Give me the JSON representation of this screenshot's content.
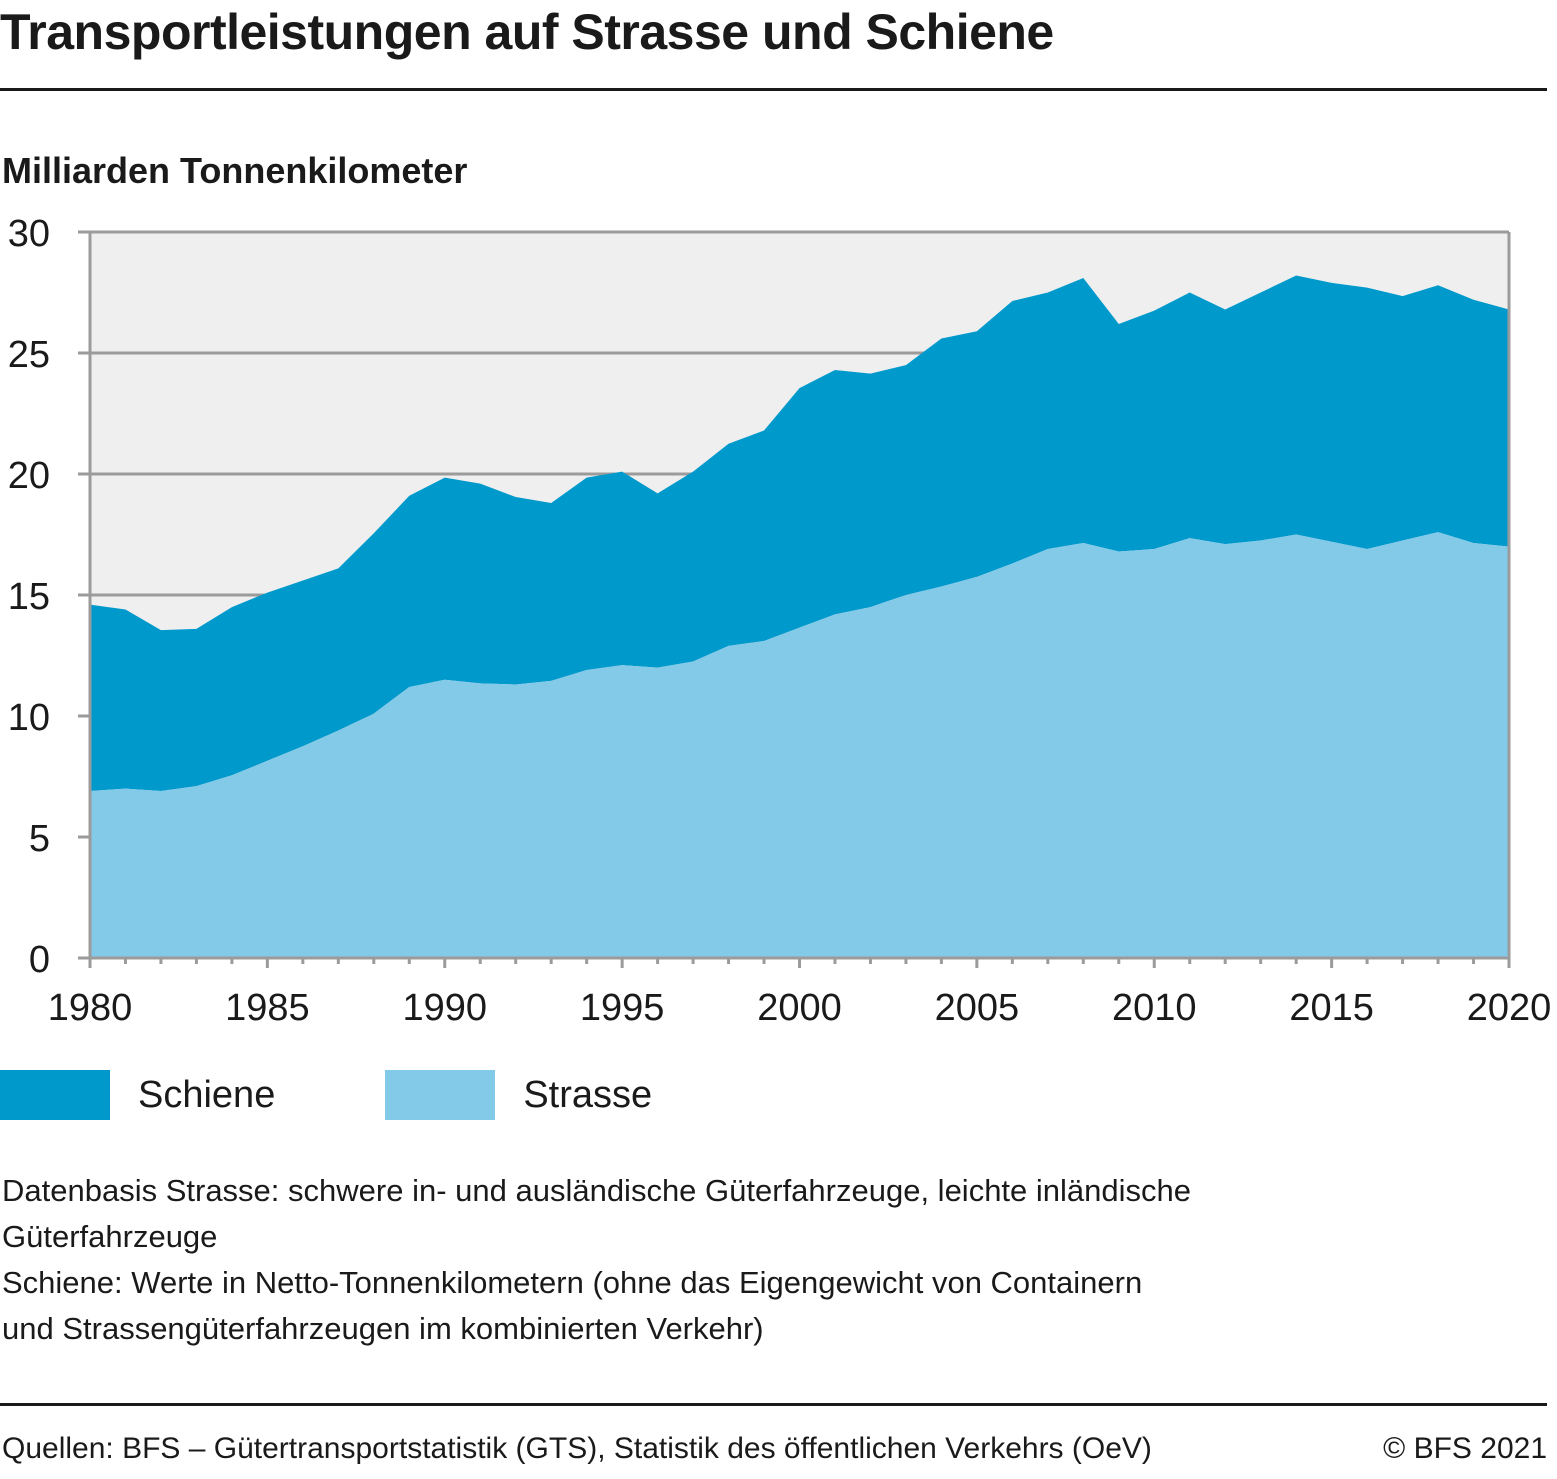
{
  "title": "Transportleistungen auf Strasse und Schiene",
  "unit_label": "Milliarden Tonnenkilometer",
  "colors": {
    "schiene": "#0099cc",
    "strasse": "#82cae8",
    "plot_background": "#efefef",
    "grid": "#9b9b9b",
    "text": "#1a1a1a"
  },
  "legend": [
    {
      "key": "schiene",
      "label": "Schiene"
    },
    {
      "key": "strasse",
      "label": "Strasse"
    }
  ],
  "notes": [
    "Datenbasis Strasse: schwere in- und ausländische Güterfahrzeuge, leichte inländische",
    "Güterfahrzeuge",
    "Schiene: Werte in Netto-Tonnenkilometern (ohne das Eigengewicht von Containern",
    "und Strassengüterfahrzeugen im kombinierten Verkehr)"
  ],
  "footer": {
    "sources": "Quellen: BFS – Gütertransportstatistik (GTS), Statistik des öffentlichen Verkehrs (OeV)",
    "copyright": "© BFS 2021"
  },
  "chart_data": {
    "type": "area",
    "stacked": true,
    "title": "Transportleistungen auf Strasse und Schiene",
    "ylabel": "Milliarden Tonnenkilometer",
    "xlabel": "",
    "xlim": [
      1980,
      2020
    ],
    "ylim": [
      0,
      30
    ],
    "yticks": [
      0,
      5,
      10,
      15,
      20,
      25,
      30
    ],
    "xticks_labeled": [
      1980,
      1985,
      1990,
      1995,
      2000,
      2005,
      2010,
      2015,
      2020
    ],
    "grid": true,
    "legend_position": "bottom-left",
    "x": [
      1980,
      1981,
      1982,
      1983,
      1984,
      1985,
      1986,
      1987,
      1988,
      1989,
      1990,
      1991,
      1992,
      1993,
      1994,
      1995,
      1996,
      1997,
      1998,
      1999,
      2000,
      2001,
      2002,
      2003,
      2004,
      2005,
      2006,
      2007,
      2008,
      2009,
      2010,
      2011,
      2012,
      2013,
      2014,
      2015,
      2016,
      2017,
      2018,
      2019,
      2020
    ],
    "series": [
      {
        "name": "Strasse",
        "values": [
          6.9,
          7.0,
          6.9,
          7.1,
          7.55,
          8.15,
          8.75,
          9.4,
          10.1,
          11.2,
          11.5,
          11.35,
          11.3,
          11.45,
          11.9,
          12.1,
          12.0,
          12.25,
          12.9,
          13.1,
          13.65,
          14.2,
          14.5,
          15.0,
          15.35,
          15.75,
          16.3,
          16.9,
          17.15,
          16.8,
          16.9,
          17.35,
          17.1,
          17.25,
          17.5,
          17.2,
          16.9,
          17.25,
          17.6,
          17.15,
          17.0
        ]
      },
      {
        "name": "Schiene",
        "values": [
          7.7,
          7.4,
          6.65,
          6.5,
          6.95,
          6.95,
          6.85,
          6.7,
          7.45,
          7.9,
          8.35,
          8.25,
          7.75,
          7.35,
          7.95,
          8.0,
          7.2,
          7.85,
          8.35,
          8.7,
          9.9,
          10.1,
          9.65,
          9.5,
          10.25,
          10.15,
          10.85,
          10.6,
          10.95,
          9.4,
          9.85,
          10.15,
          9.7,
          10.25,
          10.7,
          10.7,
          10.8,
          10.1,
          10.2,
          10.05,
          9.8
        ]
      }
    ]
  }
}
